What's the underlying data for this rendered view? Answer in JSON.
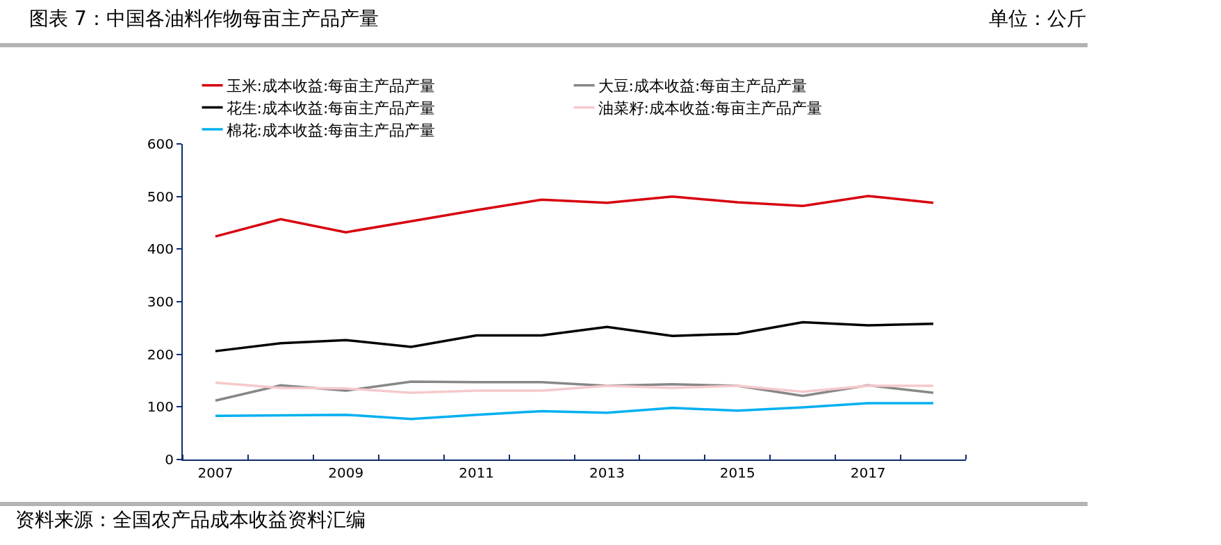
{
  "chart_data": {
    "type": "line",
    "title": "图表 7：中国各油料作物每亩主产品产量",
    "subtitle": "单位：公斤",
    "categories": [
      "2007",
      null,
      "2009",
      null,
      "2011",
      null,
      "2013",
      null,
      "2015",
      null,
      "2017",
      null
    ],
    "series": [
      {
        "name": "玉米:成本收益:每亩主产品产量",
        "color": "#d7000f",
        "values": [
          424,
          457,
          432,
          453,
          474,
          494,
          488,
          500,
          489,
          482,
          501,
          488
        ]
      },
      {
        "name": "大豆:成本收益:每亩主产品产量",
        "color": "#878787",
        "values": [
          112,
          141,
          131,
          148,
          147,
          147,
          140,
          143,
          140,
          121,
          141,
          127
        ]
      },
      {
        "name": "花生:成本收益:每亩主产品产量",
        "color": "#000000",
        "values": [
          206,
          221,
          227,
          214,
          236,
          236,
          252,
          235,
          239,
          261,
          255,
          258
        ]
      },
      {
        "name": "油菜籽:成本收益:每亩主产品产量",
        "color": "#f5c9cb",
        "values": [
          146,
          136,
          135,
          127,
          131,
          131,
          140,
          136,
          140,
          129,
          140,
          140
        ]
      },
      {
        "name": "棉花:成本收益:每亩主产品产量",
        "color": "#00b0f0",
        "values": [
          83,
          84,
          85,
          77,
          85,
          92,
          89,
          98,
          93,
          99,
          107,
          107
        ]
      }
    ],
    "ylim": [
      0,
      600
    ],
    "yticks": [
      0,
      100,
      200,
      300,
      400,
      500,
      600
    ],
    "legend": "top",
    "marker": "none",
    "line_style": "solid",
    "annotations": [
      "资料来源：全国农产品成本收益资料汇编"
    ]
  }
}
